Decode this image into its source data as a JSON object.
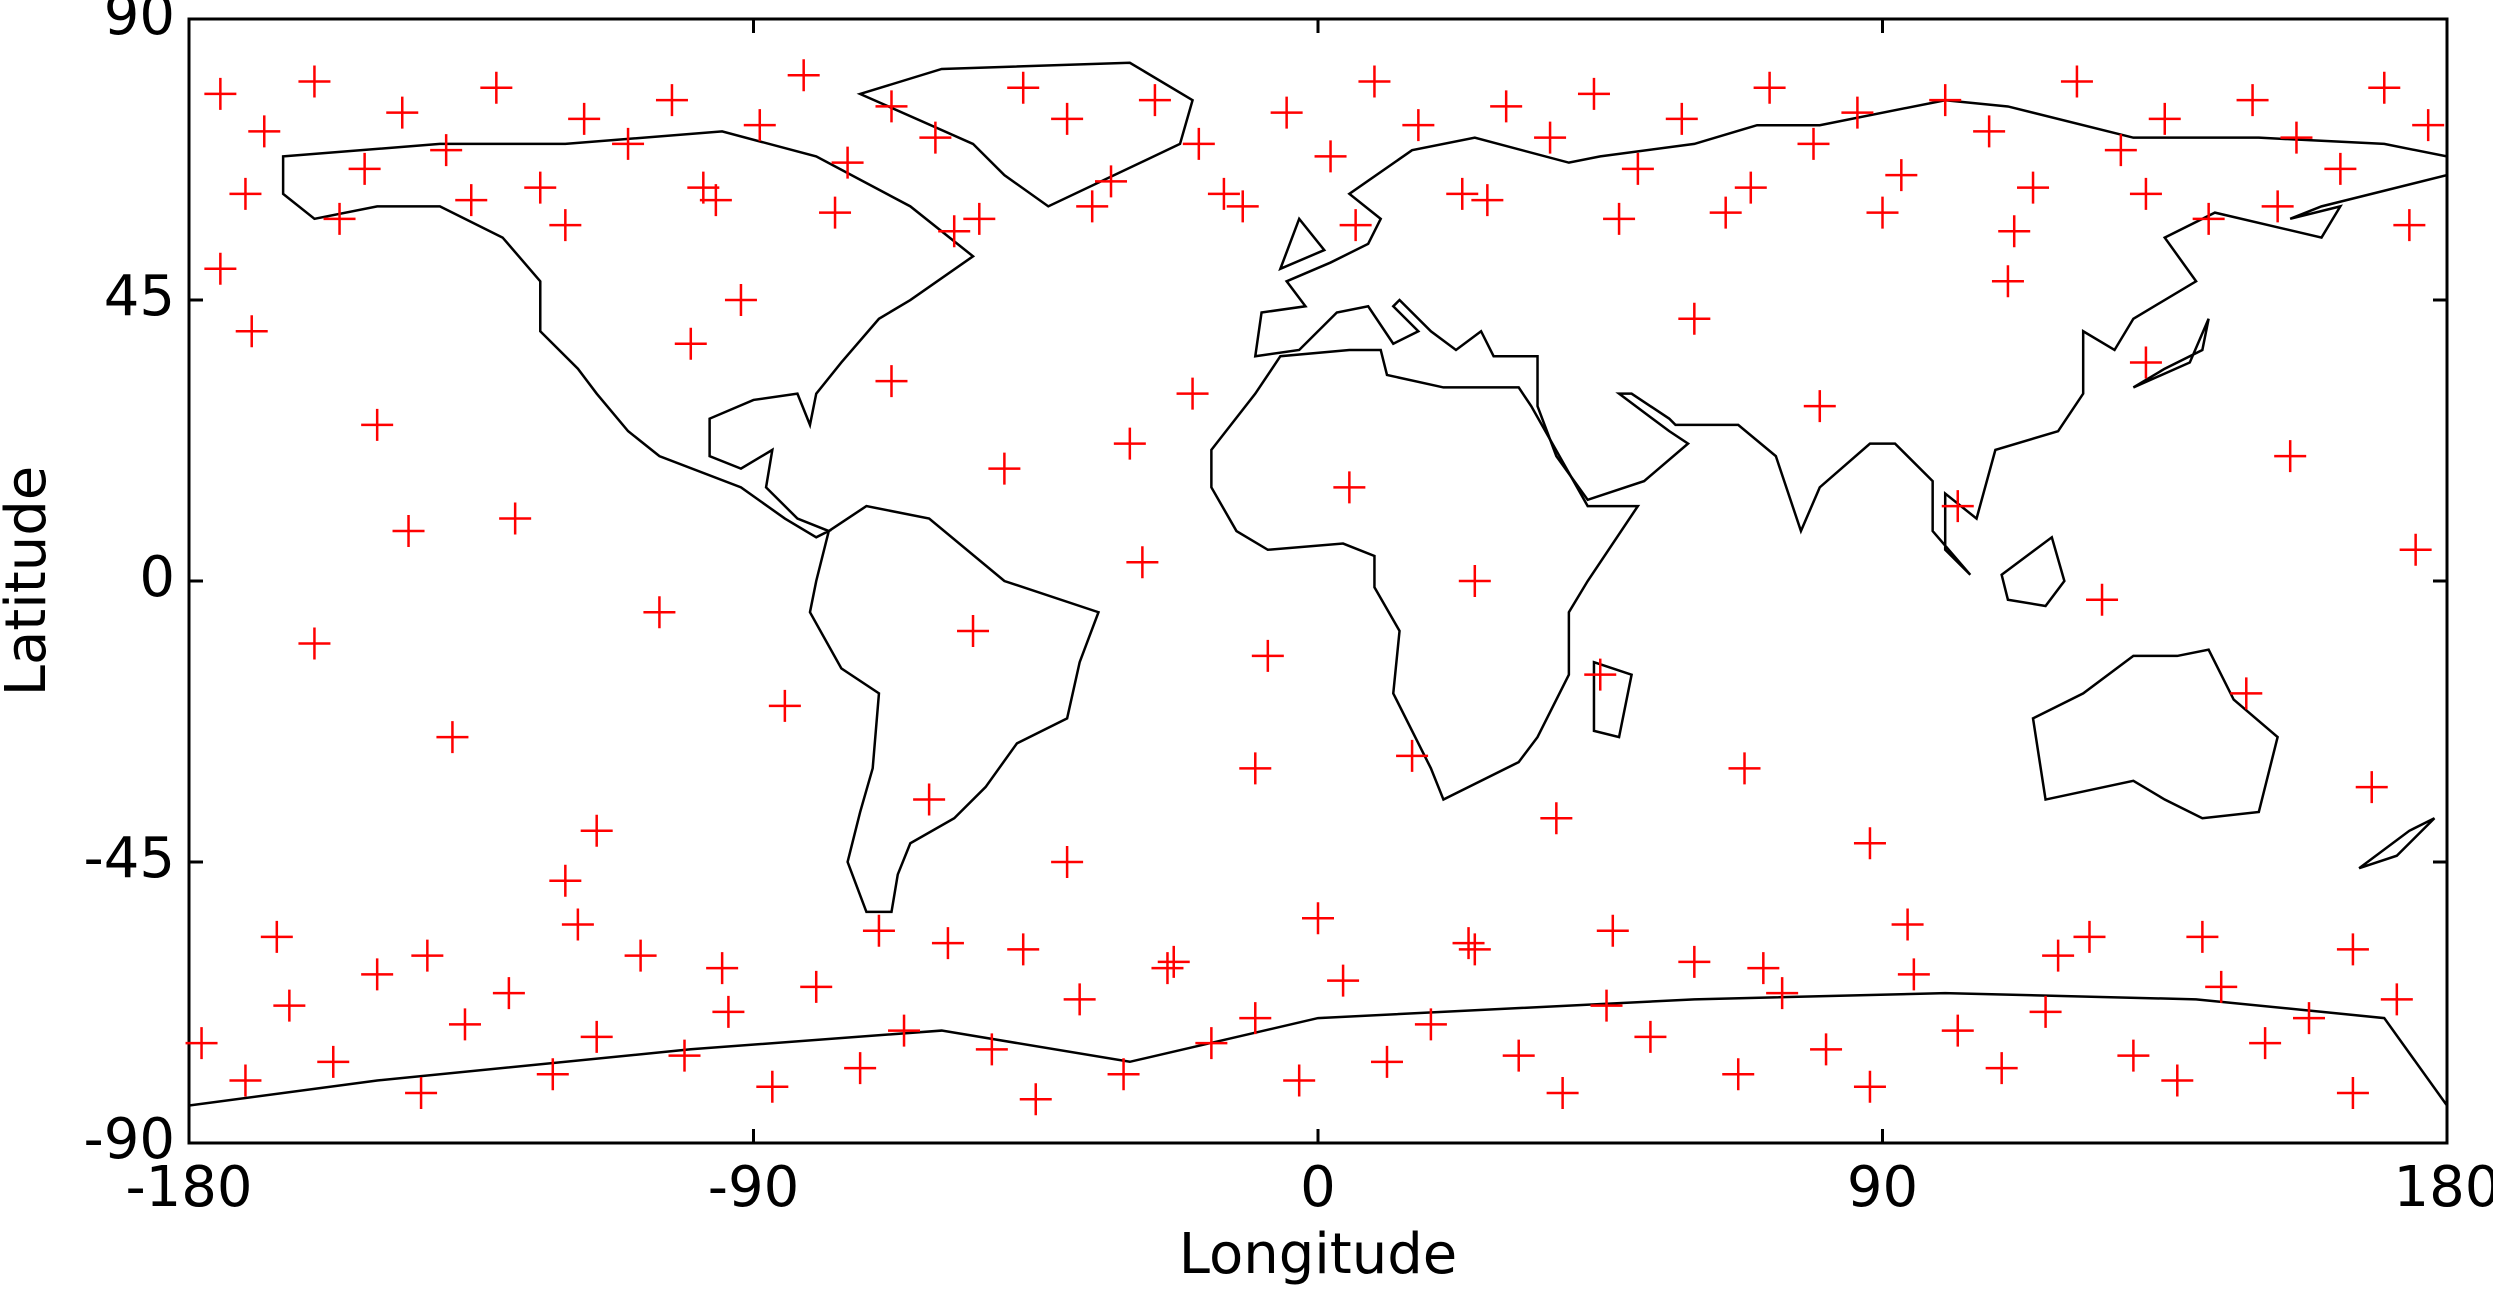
{
  "chart_data": {
    "type": "scatter",
    "xlabel": "Longitude",
    "ylabel": "Latitude",
    "xlim": [
      -180,
      180
    ],
    "ylim": [
      -90,
      90
    ],
    "xticks": [
      -180,
      -90,
      0,
      90,
      180
    ],
    "yticks": [
      -90,
      -45,
      0,
      45,
      90
    ],
    "color": "#ff0000",
    "marker": "+",
    "x": [
      -175,
      -168,
      -160,
      -152,
      -146,
      -139,
      -131,
      -124,
      -117,
      -110,
      -103,
      -96,
      -89,
      -82,
      -75,
      -68,
      -61,
      -54,
      -47,
      -40,
      -33,
      -26,
      -19,
      -12,
      -5,
      2,
      9,
      16,
      23,
      30,
      37,
      44,
      51,
      58,
      65,
      72,
      79,
      86,
      93,
      100,
      107,
      114,
      121,
      128,
      135,
      142,
      149,
      156,
      163,
      170,
      177,
      -171,
      -156,
      -135,
      -120,
      -98,
      -77,
      -58,
      -36,
      -15,
      6,
      27,
      48,
      69,
      90,
      111,
      132,
      153,
      174,
      -178,
      -171,
      -164,
      -157,
      -150,
      -143,
      -136,
      -129,
      -122,
      -115,
      -108,
      -101,
      -94,
      -87,
      -80,
      -73,
      -66,
      -59,
      -52,
      -45,
      -38,
      -31,
      -24,
      -17,
      -10,
      -3,
      4,
      11,
      18,
      25,
      32,
      39,
      46,
      53,
      60,
      67,
      74,
      81,
      88,
      95,
      102,
      109,
      116,
      123,
      130,
      137,
      144,
      151,
      158,
      165,
      172,
      -166,
      -142,
      -118,
      -95,
      -70,
      -47,
      -23,
      0,
      24,
      47,
      71,
      94,
      118,
      141,
      165,
      -170,
      -150,
      -128,
      -105,
      -85,
      -62,
      -40,
      -20,
      5,
      25,
      45,
      68,
      88,
      110,
      132,
      155,
      175,
      -160,
      -138,
      -115,
      -92,
      -68,
      -50,
      -28,
      -8,
      15,
      38,
      60,
      80,
      102,
      125,
      148,
      168,
      -175,
      -145,
      -120,
      -100,
      -55,
      -30,
      -10
    ],
    "y": [
      78,
      72,
      80,
      66,
      75,
      69,
      79,
      63,
      74,
      70,
      77,
      61,
      73,
      81,
      67,
      76,
      71,
      58,
      79,
      74,
      64,
      77,
      70,
      60,
      75,
      68,
      80,
      73,
      62,
      76,
      71,
      78,
      66,
      74,
      59,
      79,
      70,
      75,
      65,
      77,
      72,
      63,
      80,
      69,
      74,
      58,
      77,
      71,
      66,
      79,
      73,
      62,
      58,
      61,
      57,
      63,
      59,
      56,
      60,
      62,
      57,
      61,
      58,
      63,
      59,
      56,
      62,
      60,
      57,
      -74,
      -80,
      -68,
      -77,
      -63,
      -82,
      -71,
      -66,
      -79,
      -73,
      -60,
      -76,
      -69,
      -81,
      -65,
      -78,
      -72,
      -58,
      -75,
      -83,
      -67,
      -79,
      -62,
      -74,
      -70,
      -80,
      -64,
      -77,
      -71,
      -59,
      -76,
      -82,
      -68,
      -73,
      -61,
      -79,
      -66,
      -75,
      -81,
      -63,
      -72,
      -78,
      -69,
      -57,
      -76,
      -80,
      -65,
      -74,
      -70,
      -82,
      -67,
      -57,
      -60,
      -55,
      -62,
      -56,
      -59,
      -61,
      -54,
      -58,
      -56,
      -62,
      -55,
      -60,
      -57,
      -59,
      40,
      25,
      10,
      -5,
      -20,
      -35,
      -45,
      30,
      15,
      0,
      -15,
      -30,
      -42,
      48,
      35,
      20,
      5,
      -10,
      -25,
      -40,
      45,
      32,
      18,
      3,
      -12,
      -28,
      -38,
      42,
      28,
      12,
      -3,
      -18,
      -33,
      50,
      8,
      -48,
      38,
      -8,
      22,
      -30
    ]
  }
}
